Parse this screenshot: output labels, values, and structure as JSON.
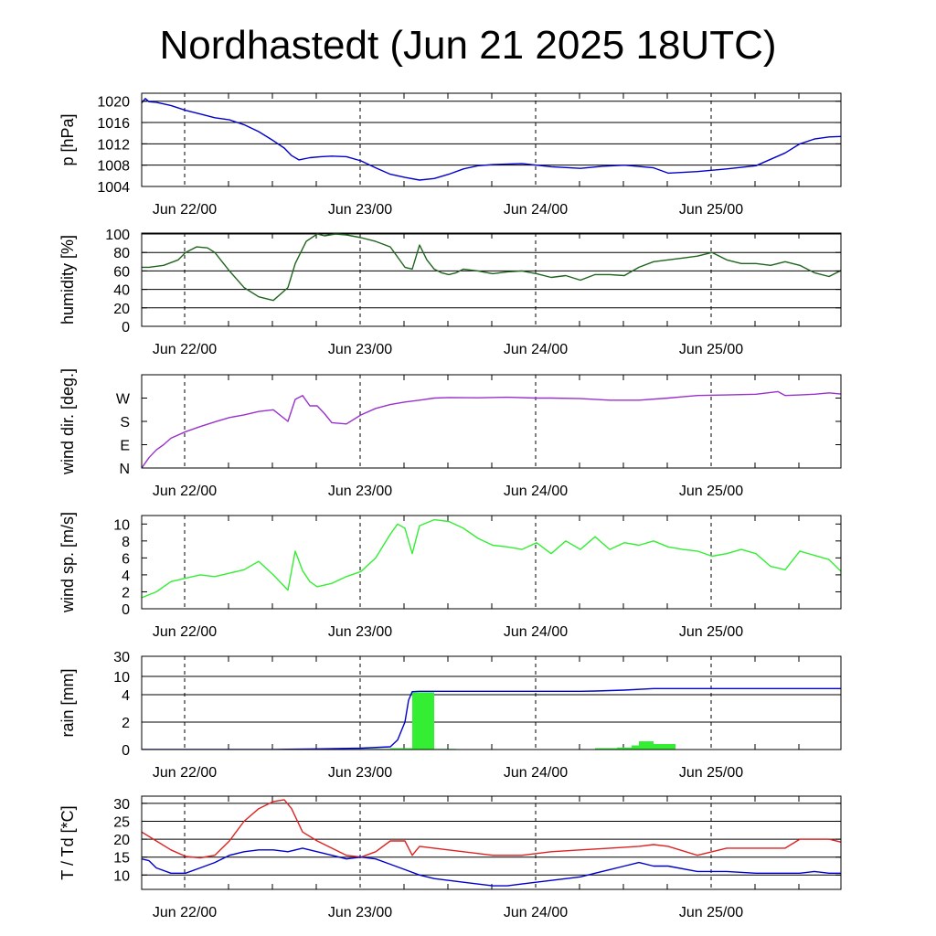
{
  "title": "Nordhastedt (Jun 21 2025 18UTC)",
  "chart_data": [
    {
      "type": "line",
      "id": "pressure",
      "ylabel": "p [hPa]",
      "x_tick_labels": [
        "Jun 22/00",
        "Jun 23/00",
        "Jun 24/00",
        "Jun 25/00"
      ],
      "x_range_hours": [
        0,
        96
      ],
      "ylim": [
        1004,
        1021.5
      ],
      "yticks": [
        1004,
        1008,
        1012,
        1016,
        1020
      ],
      "ytick_labels": [
        "1004",
        "1008",
        "1012",
        "1016",
        "1020"
      ],
      "grid": "horizontal",
      "series": [
        {
          "color": "#0000cc",
          "x": [
            0,
            0.5,
            1,
            2,
            4,
            6,
            8,
            10,
            12,
            14,
            16,
            18,
            19.5,
            20.5,
            21.5,
            23,
            24.5,
            26,
            28,
            30,
            32,
            34,
            36,
            38,
            40,
            42,
            44,
            46,
            48,
            52,
            56,
            60,
            63,
            66,
            70,
            72,
            76,
            80,
            84,
            88,
            90,
            92,
            94,
            96
          ],
          "y": [
            1019.7,
            1020.5,
            1019.9,
            1019.8,
            1019.2,
            1018.3,
            1017.6,
            1016.9,
            1016.5,
            1015.6,
            1014.3,
            1012.6,
            1011.2,
            1009.8,
            1009.0,
            1009.4,
            1009.6,
            1009.7,
            1009.6,
            1008.8,
            1007.5,
            1006.3,
            1005.7,
            1005.2,
            1005.5,
            1006.3,
            1007.3,
            1007.9,
            1008.1,
            1008.3,
            1007.7,
            1007.4,
            1007.8,
            1008.0,
            1007.5,
            1006.5,
            1006.8,
            1007.3,
            1007.9,
            1010.3,
            1012.0,
            1012.9,
            1013.3,
            1013.4
          ]
        }
      ]
    },
    {
      "type": "line",
      "id": "humidity",
      "ylabel": "humidity [%]",
      "x_tick_labels": [
        "Jun 22/00",
        "Jun 23/00",
        "Jun 24/00",
        "Jun 25/00"
      ],
      "x_range_hours": [
        0,
        96
      ],
      "ylim": [
        0,
        101
      ],
      "yticks": [
        0,
        20,
        40,
        60,
        80,
        100
      ],
      "ytick_labels": [
        "0",
        "20",
        "40",
        "60",
        "80",
        "100"
      ],
      "grid": "horizontal",
      "series": [
        {
          "color": "#1e641e",
          "x": [
            0,
            1,
            3,
            5,
            6,
            7.5,
            9,
            10,
            12,
            14,
            16,
            18,
            20,
            21,
            22.5,
            24,
            25,
            26.5,
            28,
            30,
            32,
            34,
            36,
            37,
            38,
            39,
            40,
            41,
            42,
            43,
            44,
            46,
            48,
            50,
            52,
            54,
            56,
            58,
            60,
            62,
            64,
            66,
            68,
            70,
            72,
            74,
            76,
            78,
            80,
            82,
            84,
            86,
            88,
            90,
            92,
            94,
            96
          ],
          "y": [
            64,
            64,
            66,
            72,
            80,
            86,
            85,
            80,
            60,
            42,
            32,
            28,
            42,
            68,
            92,
            100,
            98,
            100,
            99,
            96,
            92,
            86,
            64,
            62,
            88,
            72,
            62,
            58,
            56,
            58,
            62,
            60,
            57,
            59,
            60,
            57,
            53,
            55,
            50,
            56,
            56,
            55,
            64,
            70,
            72,
            74,
            76,
            80,
            72,
            68,
            68,
            66,
            70,
            66,
            58,
            54,
            62
          ]
        }
      ]
    },
    {
      "type": "line",
      "id": "wind-direction",
      "ylabel": "wind dir. [deg.]",
      "x_tick_labels": [
        "Jun 22/00",
        "Jun 23/00",
        "Jun 24/00",
        "Jun 25/00"
      ],
      "x_range_hours": [
        0,
        96
      ],
      "ylim": [
        0,
        360
      ],
      "yticks": [
        0,
        90,
        180,
        270
      ],
      "ytick_labels": [
        "N",
        "E",
        "S",
        "W"
      ],
      "grid": "none",
      "series": [
        {
          "color": "#9932cc",
          "x": [
            0,
            1,
            2,
            3,
            4,
            6,
            8,
            10,
            12,
            14,
            16,
            18,
            20,
            21,
            22,
            23,
            24,
            25,
            26,
            28,
            30,
            32,
            34,
            36,
            38,
            40,
            42,
            46,
            50,
            54,
            56,
            60,
            64,
            68,
            72,
            74,
            76,
            80,
            84,
            87,
            88,
            90,
            92,
            94,
            96
          ],
          "y": [
            0,
            40,
            70,
            90,
            115,
            140,
            160,
            178,
            195,
            205,
            218,
            225,
            180,
            265,
            280,
            240,
            240,
            210,
            175,
            170,
            205,
            230,
            245,
            255,
            262,
            270,
            272,
            271,
            273,
            270,
            270,
            268,
            262,
            262,
            270,
            275,
            280,
            282,
            285,
            295,
            280,
            282,
            285,
            290,
            285
          ]
        }
      ]
    },
    {
      "type": "line",
      "id": "wind-speed",
      "ylabel": "wind sp. [m/s]",
      "x_tick_labels": [
        "Jun 22/00",
        "Jun 23/00",
        "Jun 24/00",
        "Jun 25/00"
      ],
      "x_range_hours": [
        0,
        96
      ],
      "ylim": [
        0,
        11
      ],
      "yticks": [
        0,
        2,
        4,
        6,
        8,
        10
      ],
      "ytick_labels": [
        "0",
        "2",
        "4",
        "6",
        "8",
        "10"
      ],
      "grid": "none",
      "series": [
        {
          "color": "#33ee33",
          "x": [
            0,
            2,
            4,
            6,
            8,
            10,
            12,
            14,
            16,
            18,
            20,
            21,
            22,
            23,
            24,
            26,
            28,
            30,
            32,
            34,
            35,
            36,
            37,
            38,
            40,
            42,
            44,
            46,
            48,
            50,
            52,
            54,
            56,
            58,
            60,
            62,
            64,
            66,
            68,
            70,
            72,
            74,
            76,
            78,
            80,
            82,
            84,
            86,
            88,
            90,
            92,
            94,
            96
          ],
          "y": [
            1.3,
            2.0,
            3.2,
            3.6,
            4.0,
            3.8,
            4.2,
            4.6,
            5.6,
            4.0,
            2.2,
            6.8,
            4.5,
            3.2,
            2.6,
            3.0,
            3.8,
            4.4,
            6.0,
            8.8,
            10.0,
            9.5,
            6.5,
            9.8,
            10.5,
            10.3,
            9.5,
            8.3,
            7.5,
            7.3,
            7.0,
            7.8,
            6.5,
            8.0,
            7.0,
            8.5,
            7.0,
            7.8,
            7.5,
            8.0,
            7.3,
            7.0,
            6.8,
            6.2,
            6.5,
            7.0,
            6.5,
            5.0,
            4.6,
            6.8,
            6.3,
            5.8,
            4.1
          ]
        }
      ]
    },
    {
      "type": "bar",
      "id": "rain",
      "ylabel": "rain [mm]",
      "x_tick_labels": [
        "Jun 22/00",
        "Jun 23/00",
        "Jun 24/00",
        "Jun 25/00"
      ],
      "x_range_hours": [
        0,
        96
      ],
      "ylim": [
        0,
        30
      ],
      "yticks": [
        0,
        2,
        4,
        10,
        30
      ],
      "ytick_labels": [
        "0",
        "2",
        "4",
        "10",
        "30"
      ],
      "grid": "horizontal",
      "bars": {
        "color": "#33ee33",
        "x_start": [
          24,
          34,
          37,
          40,
          62,
          65,
          67,
          68,
          70
        ],
        "x_end": [
          34,
          37,
          40,
          43,
          65,
          67,
          68,
          70,
          73
        ],
        "values": [
          0.05,
          0.1,
          4.8,
          0.05,
          0.1,
          0.15,
          0.3,
          0.6,
          0.4
        ]
      },
      "series": [
        {
          "color": "#0000cc",
          "x": [
            0,
            18,
            20,
            24,
            30,
            34,
            35,
            36,
            36.5,
            37,
            38,
            43,
            48,
            60,
            62,
            66,
            70,
            72,
            80,
            90,
            96
          ],
          "y": [
            0,
            0,
            0.02,
            0.05,
            0.1,
            0.2,
            0.7,
            2.0,
            3.6,
            5.0,
            5.1,
            5.1,
            5.1,
            5.1,
            5.2,
            5.5,
            6.0,
            6.0,
            6.0,
            6.0,
            6.0
          ]
        }
      ]
    },
    {
      "type": "line",
      "id": "temperature-dewpoint",
      "ylabel": "T / Td [*C]",
      "x_tick_labels": [
        "Jun 22/00",
        "Jun 23/00",
        "Jun 24/00",
        "Jun 25/00"
      ],
      "x_range_hours": [
        0,
        96
      ],
      "ylim": [
        6,
        32
      ],
      "yticks": [
        10,
        15,
        20,
        25,
        30
      ],
      "ytick_labels": [
        "10",
        "15",
        "20",
        "25",
        "30"
      ],
      "grid": "horizontal",
      "series": [
        {
          "color": "#dd2222",
          "x": [
            0,
            2,
            4,
            6,
            8,
            10,
            12,
            14,
            16,
            18,
            19.5,
            20.5,
            22,
            24,
            26,
            28,
            30,
            32,
            34,
            36,
            37,
            38,
            40,
            44,
            48,
            52,
            56,
            60,
            64,
            68,
            70,
            72,
            76,
            80,
            84,
            88,
            90,
            92,
            94,
            96
          ],
          "y": [
            22,
            19.5,
            17,
            15.2,
            14.8,
            15.5,
            19.5,
            25,
            28.5,
            30.5,
            31,
            28.5,
            22,
            19.5,
            17.5,
            15.5,
            15,
            16.5,
            19.5,
            19.5,
            15.5,
            18,
            17.5,
            16.5,
            15.5,
            15.5,
            16.5,
            17,
            17.5,
            18,
            18.5,
            18,
            15.5,
            17.5,
            17.5,
            17.5,
            20,
            20,
            20,
            19
          ]
        },
        {
          "color": "#0000cc",
          "x": [
            0,
            1,
            2,
            4,
            6,
            8,
            10,
            12,
            14,
            16,
            18,
            20,
            22,
            24,
            26,
            28,
            30,
            32,
            34,
            36,
            38,
            40,
            44,
            48,
            50,
            52,
            56,
            60,
            62,
            64,
            66,
            68,
            70,
            72,
            76,
            80,
            84,
            88,
            90,
            92,
            94,
            96
          ],
          "y": [
            14.5,
            14,
            12,
            10.5,
            10.5,
            12,
            13.5,
            15.5,
            16.5,
            17,
            17,
            16.5,
            17.5,
            16.5,
            15.5,
            14.5,
            15,
            14.5,
            13,
            11.5,
            10,
            9,
            8,
            7,
            7,
            7.5,
            8.5,
            9.5,
            10.5,
            11.5,
            12.5,
            13.5,
            12.5,
            12.5,
            11,
            11,
            10.5,
            10.5,
            10.5,
            11,
            10.5,
            10.5
          ]
        }
      ]
    }
  ]
}
